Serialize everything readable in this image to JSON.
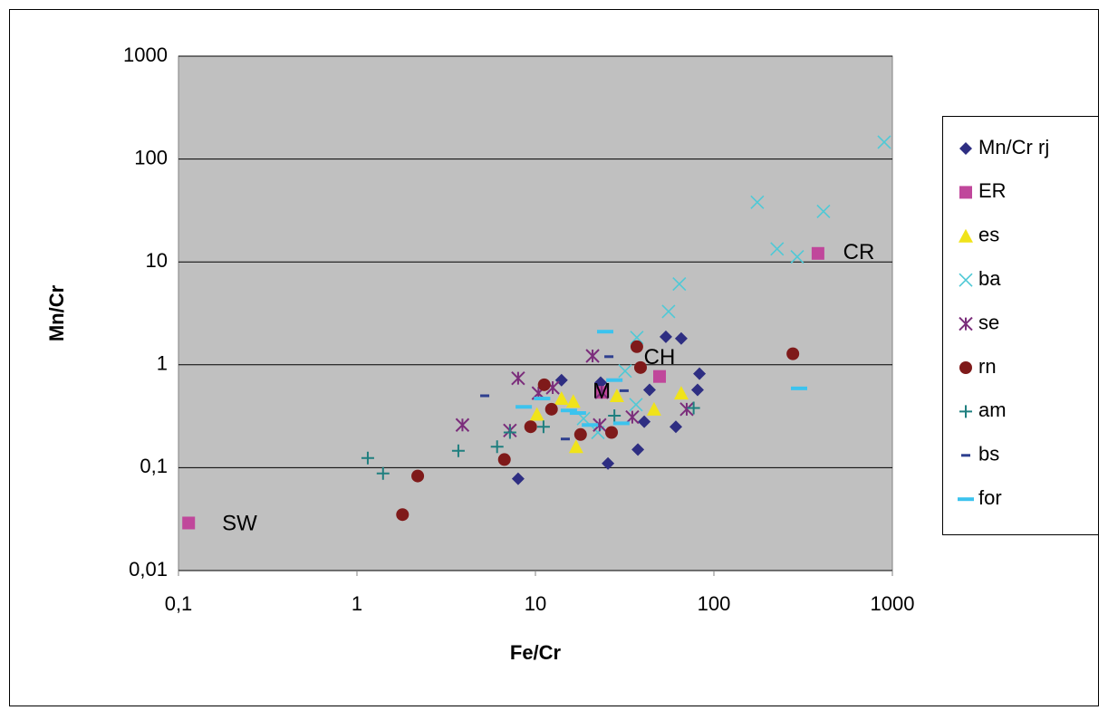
{
  "chart_data": {
    "type": "scatter",
    "x_label": "Fe/Cr",
    "y_label": "Mn/Cr",
    "xlog": true,
    "ylog": true,
    "grid": true,
    "legend": "right",
    "xlim": [
      0.1,
      1000
    ],
    "ylim": [
      0.01,
      1000
    ],
    "xticks": [
      {
        "value": 0.1,
        "label": "0,1"
      },
      1,
      10,
      100,
      1000
    ],
    "yticks": [
      {
        "value": 0.01,
        "label": "0,01"
      },
      {
        "value": 0.1,
        "label": "0,1"
      },
      1,
      10,
      100,
      1000
    ],
    "series": [
      {
        "name": "Mn/Cr rj",
        "color": "#2e2e82",
        "marker": "diamond",
        "x": [
          8.0,
          14.0,
          23.2,
          25.5,
          37.5,
          40.7,
          43.6,
          53.8,
          65.6,
          61.2,
          81,
          83
        ],
        "values": [
          0.078,
          0.71,
          0.67,
          0.11,
          0.15,
          0.28,
          0.57,
          1.87,
          1.8,
          0.25,
          0.57,
          0.82
        ]
      },
      {
        "name": "ER",
        "color": "#c0479b",
        "marker": "square",
        "x": [
          0.114,
          49.6,
          383,
          23.5
        ],
        "values": [
          0.029,
          0.77,
          12.1,
          0.54
        ]
      },
      {
        "name": "es",
        "color": "#f0e31a",
        "marker": "triangle",
        "x": [
          10.2,
          14.0,
          16.3,
          16.9,
          28.6,
          46.2,
          65.6
        ],
        "values": [
          0.33,
          0.47,
          0.44,
          0.16,
          0.5,
          0.37,
          0.53
        ]
      },
      {
        "name": "ba",
        "color": "#4fc9d6",
        "marker": "x",
        "x": [
          900,
          175,
          411,
          226,
          293,
          64,
          55.7,
          37,
          31.8,
          36.6,
          18.6,
          22.4
        ],
        "values": [
          146,
          38,
          31,
          13.4,
          11.2,
          6.1,
          3.3,
          1.84,
          0.87,
          0.41,
          0.3,
          0.22
        ]
      },
      {
        "name": "se",
        "color": "#7b2d7b",
        "marker": "asterisk",
        "x": [
          3.9,
          8.0,
          7.2,
          10.4,
          12.5,
          20.9,
          23.5,
          34.9,
          22.9,
          70.4
        ],
        "values": [
          0.26,
          0.74,
          0.23,
          0.53,
          0.6,
          1.22,
          0.54,
          0.31,
          0.26,
          0.37
        ]
      },
      {
        "name": "rn",
        "color": "#7f1a1a",
        "marker": "circle",
        "x": [
          1.8,
          2.19,
          6.7,
          9.4,
          11.2,
          12.3,
          17.9,
          26.7,
          37,
          38.8,
          277
        ],
        "values": [
          0.035,
          0.083,
          0.12,
          0.25,
          0.64,
          0.37,
          0.21,
          0.22,
          1.5,
          0.94,
          1.28
        ]
      },
      {
        "name": "am",
        "color": "#1f7f7f",
        "marker": "plus",
        "x": [
          1.15,
          1.4,
          3.7,
          6.1,
          7.2,
          11.1,
          27.7,
          77
        ],
        "values": [
          0.124,
          0.088,
          0.146,
          0.16,
          0.22,
          0.25,
          0.32,
          0.38
        ]
      },
      {
        "name": "bs",
        "color": "#2e3f8f",
        "marker": "dash-small",
        "x": [
          5.2,
          14.7,
          25.8,
          31.4
        ],
        "values": [
          0.5,
          0.19,
          1.2,
          0.56
        ]
      },
      {
        "name": "for",
        "color": "#3cc3ee",
        "marker": "dash",
        "x": [
          24.6,
          8.6,
          10.9,
          15.4,
          17.3,
          20.2,
          27.7,
          30.3,
          300
        ],
        "values": [
          2.1,
          0.39,
          0.47,
          0.36,
          0.34,
          0.26,
          0.71,
          0.27,
          0.59
        ]
      }
    ],
    "annotations": [
      {
        "text": "SW",
        "x": 0.22,
        "y": 0.028
      },
      {
        "text": "CH",
        "x": 49.6,
        "y": 1.15
      },
      {
        "text": "CR",
        "x": 649,
        "y": 12.1
      },
      {
        "text": "M",
        "x": 23.5,
        "y": 0.54
      }
    ]
  }
}
